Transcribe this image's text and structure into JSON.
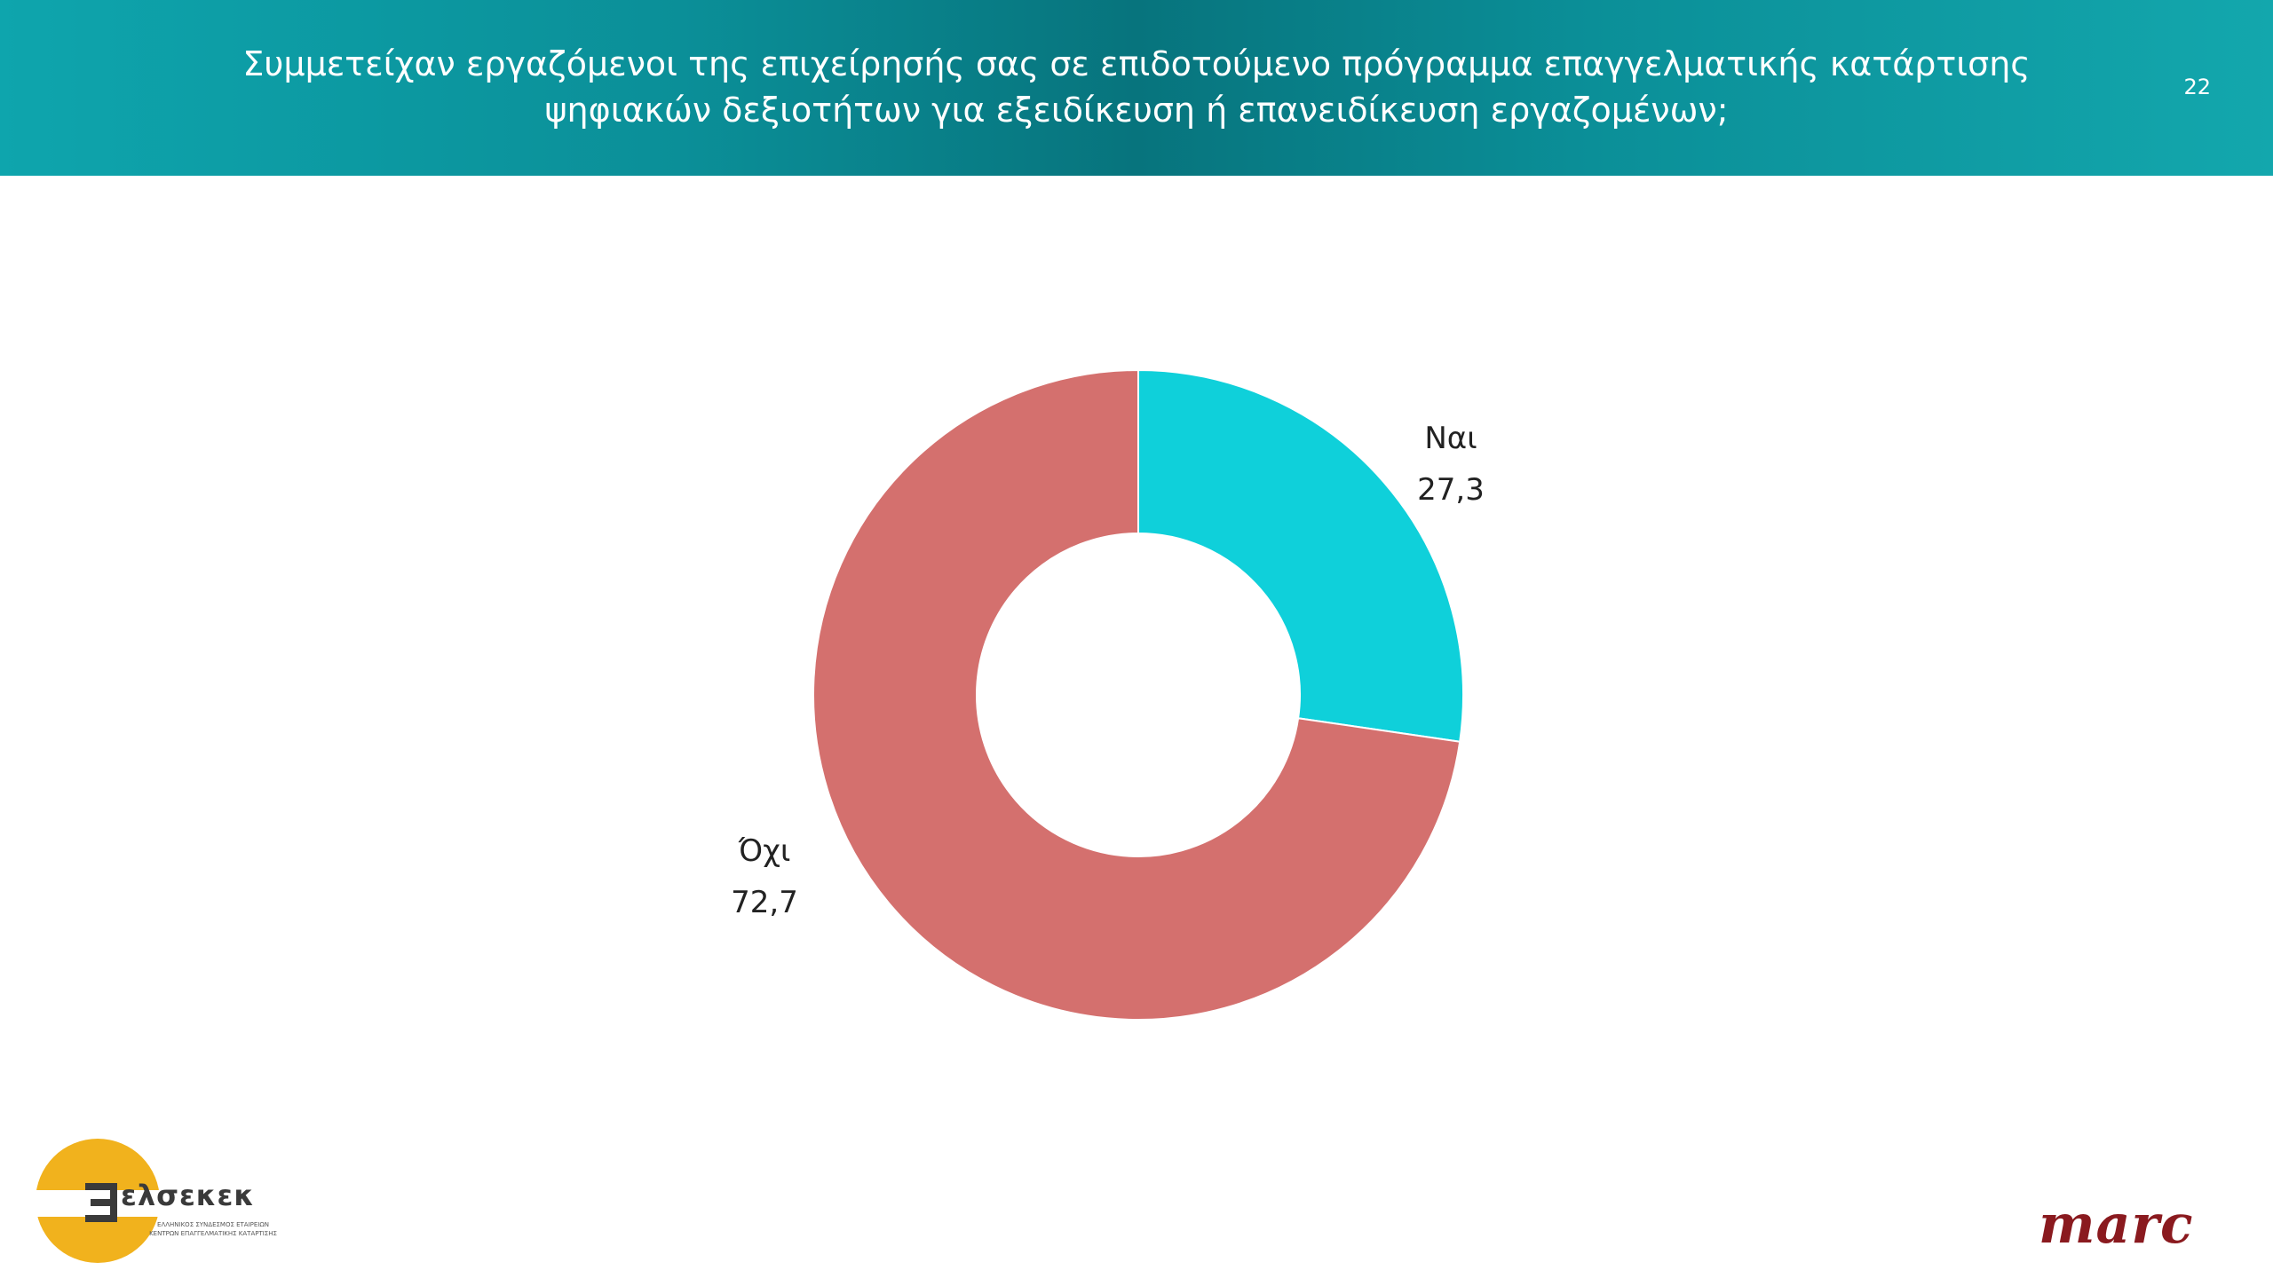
{
  "header": {
    "title_line1": "Συμμετείχαν εργαζόμενοι της επιχείρησής σας σε επιδοτούμενο πρόγραμμα επαγγελματικής κατάρτισης",
    "title_line2": "ψηφιακών δεξιοτήτων για εξειδίκευση ή επανειδίκευση εργαζομένων;",
    "page_number": "22"
  },
  "chart_data": {
    "type": "pie",
    "variant": "donut",
    "title": "",
    "slices": [
      {
        "label": "Ναι",
        "value": 27.3,
        "value_label": "27,3",
        "color": "#0fd0da"
      },
      {
        "label": "Όχι",
        "value": 72.7,
        "value_label": "72,7",
        "color": "#d4706e"
      }
    ],
    "legend": "none",
    "data_labels": "outside"
  },
  "logos": {
    "left_brand": "ελσεκεκ",
    "left_sub1": "ΕΛΛΗΝΙΚΟΣ ΣΥΝΔΕΣΜΟΣ ΕΤΑΙΡΕΙΩΝ",
    "left_sub2": "ΚΕΝΤΡΩΝ ΕΠΑΓΓΕΛΜΑΤΙΚΗΣ ΚΑΤΑΡΤΙΣΗΣ",
    "right_brand": "marc"
  }
}
